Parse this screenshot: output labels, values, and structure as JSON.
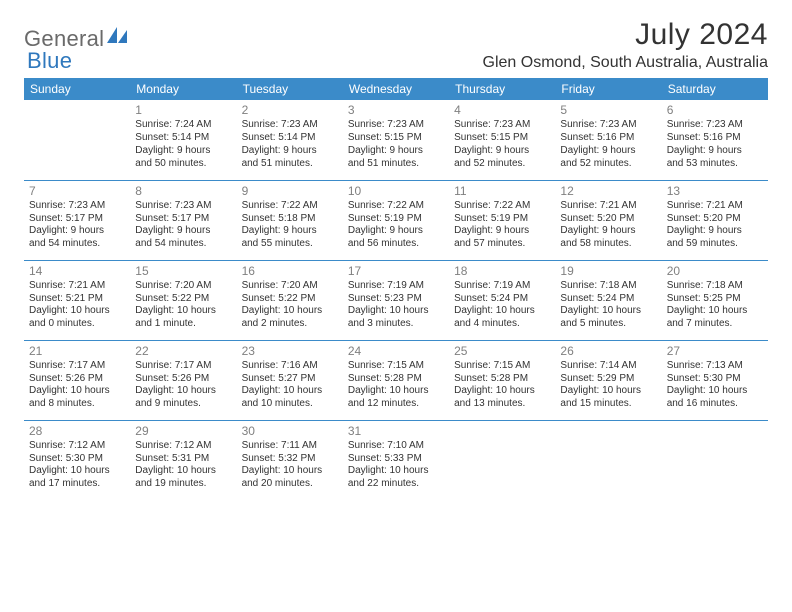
{
  "brand": {
    "part1": "General",
    "part2": "Blue"
  },
  "title": "July 2024",
  "location": "Glen Osmond, South Australia, Australia",
  "colors": {
    "header_bg": "#3b8bc9",
    "header_text": "#ffffff",
    "border": "#3b8bc9",
    "daynum": "#808080",
    "body_text": "#333333",
    "brand_gray": "#6a6a6a",
    "brand_blue": "#2f78bd",
    "background": "#ffffff"
  },
  "typography": {
    "title_fontsize": 30,
    "location_fontsize": 16,
    "header_fontsize": 12,
    "daynum_fontsize": 12,
    "cell_fontsize": 10,
    "logo_fontsize": 22
  },
  "weekdays": [
    "Sunday",
    "Monday",
    "Tuesday",
    "Wednesday",
    "Thursday",
    "Friday",
    "Saturday"
  ],
  "grid": [
    [
      null,
      {
        "n": "1",
        "l": [
          "Sunrise: 7:24 AM",
          "Sunset: 5:14 PM",
          "Daylight: 9 hours",
          "and 50 minutes."
        ]
      },
      {
        "n": "2",
        "l": [
          "Sunrise: 7:23 AM",
          "Sunset: 5:14 PM",
          "Daylight: 9 hours",
          "and 51 minutes."
        ]
      },
      {
        "n": "3",
        "l": [
          "Sunrise: 7:23 AM",
          "Sunset: 5:15 PM",
          "Daylight: 9 hours",
          "and 51 minutes."
        ]
      },
      {
        "n": "4",
        "l": [
          "Sunrise: 7:23 AM",
          "Sunset: 5:15 PM",
          "Daylight: 9 hours",
          "and 52 minutes."
        ]
      },
      {
        "n": "5",
        "l": [
          "Sunrise: 7:23 AM",
          "Sunset: 5:16 PM",
          "Daylight: 9 hours",
          "and 52 minutes."
        ]
      },
      {
        "n": "6",
        "l": [
          "Sunrise: 7:23 AM",
          "Sunset: 5:16 PM",
          "Daylight: 9 hours",
          "and 53 minutes."
        ]
      }
    ],
    [
      {
        "n": "7",
        "l": [
          "Sunrise: 7:23 AM",
          "Sunset: 5:17 PM",
          "Daylight: 9 hours",
          "and 54 minutes."
        ]
      },
      {
        "n": "8",
        "l": [
          "Sunrise: 7:23 AM",
          "Sunset: 5:17 PM",
          "Daylight: 9 hours",
          "and 54 minutes."
        ]
      },
      {
        "n": "9",
        "l": [
          "Sunrise: 7:22 AM",
          "Sunset: 5:18 PM",
          "Daylight: 9 hours",
          "and 55 minutes."
        ]
      },
      {
        "n": "10",
        "l": [
          "Sunrise: 7:22 AM",
          "Sunset: 5:19 PM",
          "Daylight: 9 hours",
          "and 56 minutes."
        ]
      },
      {
        "n": "11",
        "l": [
          "Sunrise: 7:22 AM",
          "Sunset: 5:19 PM",
          "Daylight: 9 hours",
          "and 57 minutes."
        ]
      },
      {
        "n": "12",
        "l": [
          "Sunrise: 7:21 AM",
          "Sunset: 5:20 PM",
          "Daylight: 9 hours",
          "and 58 minutes."
        ]
      },
      {
        "n": "13",
        "l": [
          "Sunrise: 7:21 AM",
          "Sunset: 5:20 PM",
          "Daylight: 9 hours",
          "and 59 minutes."
        ]
      }
    ],
    [
      {
        "n": "14",
        "l": [
          "Sunrise: 7:21 AM",
          "Sunset: 5:21 PM",
          "Daylight: 10 hours",
          "and 0 minutes."
        ]
      },
      {
        "n": "15",
        "l": [
          "Sunrise: 7:20 AM",
          "Sunset: 5:22 PM",
          "Daylight: 10 hours",
          "and 1 minute."
        ]
      },
      {
        "n": "16",
        "l": [
          "Sunrise: 7:20 AM",
          "Sunset: 5:22 PM",
          "Daylight: 10 hours",
          "and 2 minutes."
        ]
      },
      {
        "n": "17",
        "l": [
          "Sunrise: 7:19 AM",
          "Sunset: 5:23 PM",
          "Daylight: 10 hours",
          "and 3 minutes."
        ]
      },
      {
        "n": "18",
        "l": [
          "Sunrise: 7:19 AM",
          "Sunset: 5:24 PM",
          "Daylight: 10 hours",
          "and 4 minutes."
        ]
      },
      {
        "n": "19",
        "l": [
          "Sunrise: 7:18 AM",
          "Sunset: 5:24 PM",
          "Daylight: 10 hours",
          "and 5 minutes."
        ]
      },
      {
        "n": "20",
        "l": [
          "Sunrise: 7:18 AM",
          "Sunset: 5:25 PM",
          "Daylight: 10 hours",
          "and 7 minutes."
        ]
      }
    ],
    [
      {
        "n": "21",
        "l": [
          "Sunrise: 7:17 AM",
          "Sunset: 5:26 PM",
          "Daylight: 10 hours",
          "and 8 minutes."
        ]
      },
      {
        "n": "22",
        "l": [
          "Sunrise: 7:17 AM",
          "Sunset: 5:26 PM",
          "Daylight: 10 hours",
          "and 9 minutes."
        ]
      },
      {
        "n": "23",
        "l": [
          "Sunrise: 7:16 AM",
          "Sunset: 5:27 PM",
          "Daylight: 10 hours",
          "and 10 minutes."
        ]
      },
      {
        "n": "24",
        "l": [
          "Sunrise: 7:15 AM",
          "Sunset: 5:28 PM",
          "Daylight: 10 hours",
          "and 12 minutes."
        ]
      },
      {
        "n": "25",
        "l": [
          "Sunrise: 7:15 AM",
          "Sunset: 5:28 PM",
          "Daylight: 10 hours",
          "and 13 minutes."
        ]
      },
      {
        "n": "26",
        "l": [
          "Sunrise: 7:14 AM",
          "Sunset: 5:29 PM",
          "Daylight: 10 hours",
          "and 15 minutes."
        ]
      },
      {
        "n": "27",
        "l": [
          "Sunrise: 7:13 AM",
          "Sunset: 5:30 PM",
          "Daylight: 10 hours",
          "and 16 minutes."
        ]
      }
    ],
    [
      {
        "n": "28",
        "l": [
          "Sunrise: 7:12 AM",
          "Sunset: 5:30 PM",
          "Daylight: 10 hours",
          "and 17 minutes."
        ]
      },
      {
        "n": "29",
        "l": [
          "Sunrise: 7:12 AM",
          "Sunset: 5:31 PM",
          "Daylight: 10 hours",
          "and 19 minutes."
        ]
      },
      {
        "n": "30",
        "l": [
          "Sunrise: 7:11 AM",
          "Sunset: 5:32 PM",
          "Daylight: 10 hours",
          "and 20 minutes."
        ]
      },
      {
        "n": "31",
        "l": [
          "Sunrise: 7:10 AM",
          "Sunset: 5:33 PM",
          "Daylight: 10 hours",
          "and 22 minutes."
        ]
      },
      null,
      null,
      null
    ]
  ]
}
